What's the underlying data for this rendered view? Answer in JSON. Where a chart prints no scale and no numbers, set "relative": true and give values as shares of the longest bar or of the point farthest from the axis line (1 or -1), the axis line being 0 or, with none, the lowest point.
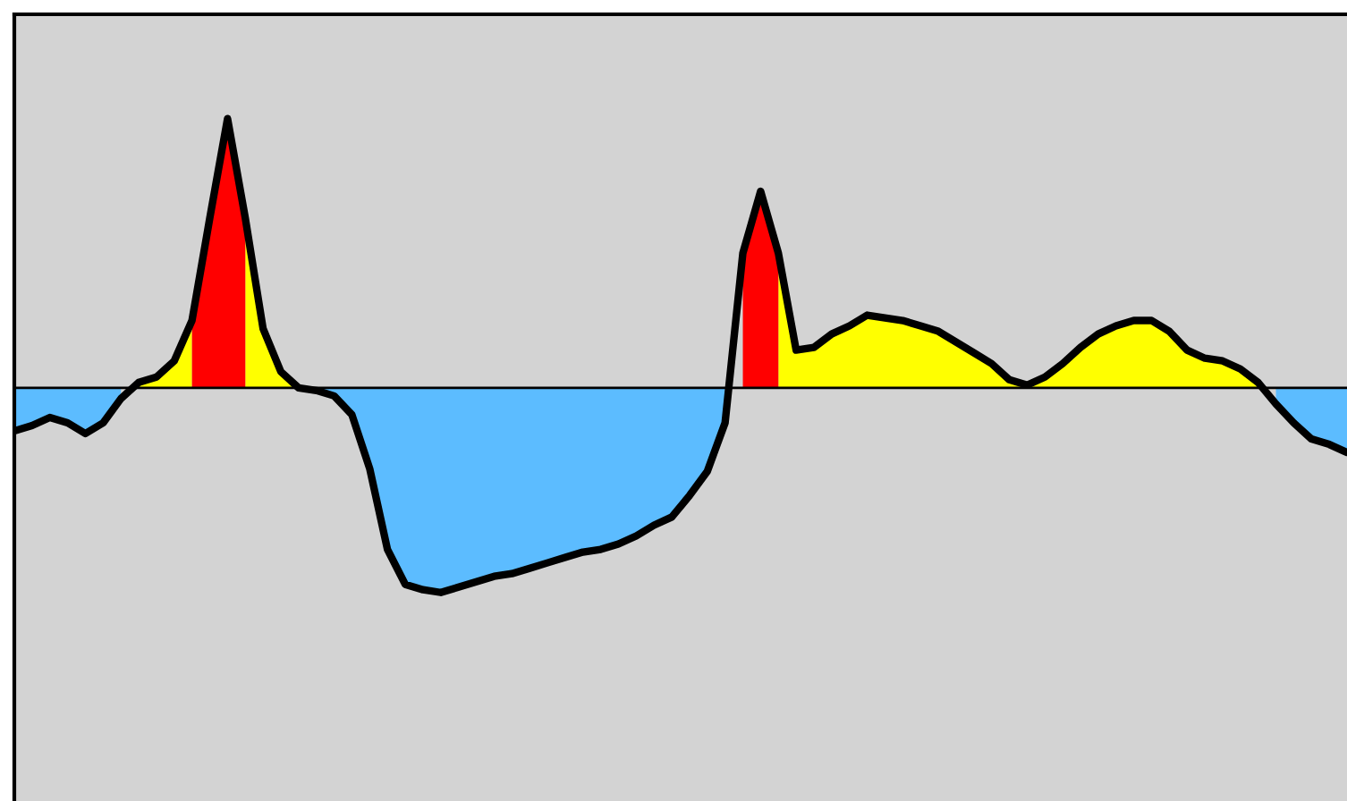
{
  "chart_data": {
    "type": "area",
    "relative": true,
    "categories": [
      null,
      null,
      null,
      null,
      null,
      null,
      null,
      null,
      null,
      null,
      null,
      null,
      null,
      null,
      null,
      null,
      null,
      null,
      null,
      null,
      null,
      null,
      null,
      null,
      null,
      null,
      null,
      null,
      null,
      null,
      null,
      null,
      null,
      null,
      null,
      null,
      null,
      null,
      null,
      null,
      null,
      null,
      null,
      null,
      null,
      null,
      null,
      null,
      null,
      null,
      null,
      null,
      null,
      null,
      null,
      null,
      null,
      null,
      null,
      null,
      null,
      null,
      null,
      null,
      null,
      null,
      null,
      null,
      null,
      null,
      null,
      null,
      null,
      null,
      null,
      null
    ],
    "series": [
      {
        "type": "line",
        "color": "#000000",
        "values": [
          -0.16,
          -0.14,
          -0.11,
          -0.13,
          -0.17,
          -0.13,
          -0.04,
          0.02,
          0.04,
          0.1,
          0.25,
          0.63,
          1,
          0.63,
          0.22,
          0.06,
          0,
          -0.01,
          -0.03,
          -0.1,
          -0.3,
          -0.6,
          -0.73,
          -0.75,
          -0.76,
          -0.74,
          -0.72,
          -0.7,
          -0.69,
          -0.67,
          -0.65,
          -0.63,
          -0.61,
          -0.6,
          -0.58,
          -0.55,
          -0.51,
          -0.48,
          -0.4,
          -0.31,
          -0.13,
          0.5,
          0.73,
          0.5,
          0.14,
          0.15,
          0.2,
          0.23,
          0.27,
          0.26,
          0.25,
          0.23,
          0.21,
          0.17,
          0.13,
          0.09,
          0.03,
          0.01,
          0.04,
          0.09,
          0.15,
          0.2,
          0.23,
          0.25,
          0.25,
          0.21,
          0.14,
          0.11,
          0.1,
          0.07,
          0.02,
          -0.06,
          -0.13,
          -0.19,
          -0.21,
          -0.24
        ]
      },
      {
        "color": "#5cbcff",
        "values": [
          -0.16,
          -0.14,
          -0.11,
          -0.13,
          -0.17,
          -0.13,
          -0.04,
          null,
          null,
          null,
          null,
          null,
          null,
          null,
          null,
          null,
          0,
          -0.01,
          -0.03,
          -0.1,
          -0.3,
          -0.6,
          -0.73,
          -0.75,
          -0.76,
          -0.74,
          -0.72,
          -0.7,
          -0.69,
          -0.67,
          -0.65,
          -0.63,
          -0.61,
          -0.6,
          -0.58,
          -0.55,
          -0.51,
          -0.48,
          -0.4,
          -0.31,
          -0.13,
          null,
          null,
          null,
          null,
          null,
          null,
          null,
          null,
          null,
          null,
          null,
          null,
          null,
          null,
          null,
          null,
          null,
          null,
          null,
          null,
          null,
          null,
          null,
          null,
          null,
          null,
          null,
          null,
          null,
          null,
          -0.06,
          -0.13,
          -0.19,
          -0.21,
          -0.24
        ]
      },
      {
        "color": "#ffff00",
        "values": [
          null,
          null,
          null,
          null,
          null,
          null,
          null,
          0.02,
          0.04,
          0.1,
          0.25,
          null,
          null,
          0.63,
          0.22,
          0.06,
          0,
          null,
          null,
          null,
          null,
          null,
          null,
          null,
          null,
          null,
          null,
          null,
          null,
          null,
          null,
          null,
          null,
          null,
          null,
          null,
          null,
          null,
          null,
          null,
          null,
          null,
          null,
          0.5,
          0.14,
          0.15,
          0.2,
          0.23,
          0.27,
          0.26,
          0.25,
          0.23,
          0.21,
          0.17,
          0.13,
          0.09,
          0.03,
          0.01,
          0.04,
          0.09,
          0.15,
          0.2,
          0.23,
          0.25,
          0.25,
          0.21,
          0.14,
          0.11,
          0.1,
          0.07,
          0.02,
          null,
          null,
          null,
          null,
          null
        ]
      },
      {
        "color": "#ff0000",
        "values": [
          null,
          null,
          null,
          null,
          null,
          null,
          null,
          null,
          null,
          null,
          0.25,
          0.63,
          1,
          0.63,
          null,
          null,
          null,
          null,
          null,
          null,
          null,
          null,
          null,
          null,
          null,
          null,
          null,
          null,
          null,
          null,
          null,
          null,
          null,
          null,
          null,
          null,
          null,
          null,
          null,
          null,
          null,
          0.5,
          0.73,
          0.5,
          null,
          null,
          null,
          null,
          null,
          null,
          null,
          null,
          null,
          null,
          null,
          null,
          null,
          null,
          null,
          null,
          null,
          null,
          null,
          null,
          null,
          null,
          null,
          null,
          null,
          null,
          null,
          null,
          null,
          null,
          null,
          null
        ]
      }
    ]
  }
}
